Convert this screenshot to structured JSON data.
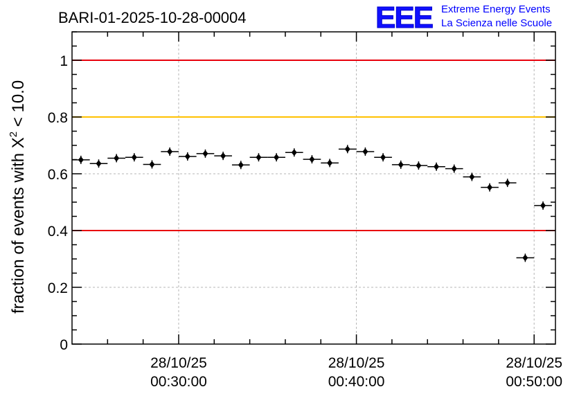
{
  "title": "BARI-01-2025-10-28-00004",
  "logo": {
    "mark": "EEE",
    "line1": "Extreme Energy Events",
    "line2": "La Scienza nelle Scuole"
  },
  "chart_data": {
    "type": "scatter",
    "title": "BARI-01-2025-10-28-00004",
    "ylabel_prefix": "fraction of events with ",
    "ylabel_symbol": "X",
    "ylabel_exponent": "2",
    "ylabel_suffix": " < 10.0",
    "xlabel": "",
    "x_unit": "minutes",
    "xlim": [
      24.0,
      51.2
    ],
    "ylim": [
      0,
      1.1
    ],
    "y_ticks": [
      0,
      0.2,
      0.4,
      0.6,
      0.8,
      1
    ],
    "y_tick_labels": [
      "0",
      "0.2",
      "0.4",
      "0.6",
      "0.8",
      "1"
    ],
    "x_major_ticks": [
      30,
      40,
      50
    ],
    "x_tick_labels": [
      {
        "date": "28/10/25",
        "time": "00:30:00"
      },
      {
        "date": "28/10/25",
        "time": "00:40:00"
      },
      {
        "date": "28/10/25",
        "time": "00:50:00"
      }
    ],
    "grid": true,
    "reference_lines": [
      {
        "y": 1.0,
        "color": "#e8000b"
      },
      {
        "y": 0.8,
        "color": "#ffc000"
      },
      {
        "y": 0.4,
        "color": "#e8000b"
      }
    ],
    "bin_width": 1.0,
    "series": [
      {
        "name": "fraction",
        "color": "#000000",
        "x": [
          24.5,
          25.5,
          26.5,
          27.5,
          28.5,
          29.5,
          30.5,
          31.5,
          32.5,
          33.5,
          34.5,
          35.5,
          36.5,
          37.5,
          38.5,
          39.5,
          40.5,
          41.5,
          42.5,
          43.5,
          44.5,
          45.5,
          46.5,
          47.5,
          48.5,
          49.5,
          50.5
        ],
        "y": [
          0.649,
          0.636,
          0.655,
          0.658,
          0.633,
          0.678,
          0.661,
          0.671,
          0.663,
          0.631,
          0.658,
          0.658,
          0.675,
          0.651,
          0.638,
          0.687,
          0.678,
          0.658,
          0.632,
          0.629,
          0.625,
          0.618,
          0.589,
          0.552,
          0.568,
          0.304,
          0.488
        ]
      }
    ]
  }
}
